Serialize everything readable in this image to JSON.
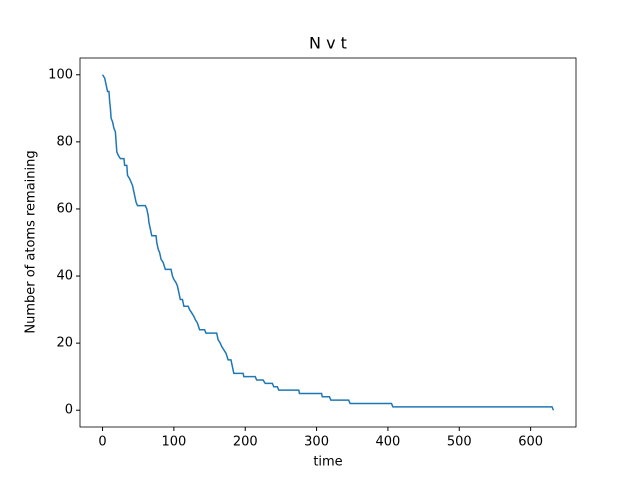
{
  "chart_data": {
    "type": "line",
    "title": "N v t",
    "x_label": "time",
    "y_label": "Number of atoms remaining",
    "x": [
      0,
      3,
      5,
      7,
      9,
      10,
      11,
      12,
      14,
      16,
      18,
      19,
      20,
      22,
      25,
      30,
      31,
      34,
      35,
      38,
      40,
      42,
      44,
      46,
      47,
      49,
      60,
      62,
      64,
      65,
      67,
      69,
      75,
      76,
      78,
      80,
      82,
      85,
      88,
      96,
      98,
      100,
      103,
      105,
      107,
      109,
      112,
      114,
      120,
      122,
      125,
      128,
      130,
      133,
      136,
      143,
      145,
      160,
      162,
      165,
      167,
      170,
      173,
      176,
      180,
      182,
      184,
      197,
      198,
      214,
      216,
      225,
      228,
      238,
      240,
      245,
      247,
      275,
      276,
      307,
      308,
      318,
      320,
      345,
      347,
      405,
      407,
      630,
      632
    ],
    "series": [
      {
        "name": "N",
        "color": "#1f77b4",
        "values": [
          100,
          99,
          97,
          95,
          95,
          92,
          90,
          87,
          86,
          84,
          83,
          80,
          77,
          76,
          75,
          75,
          73,
          73,
          70,
          69,
          68,
          67,
          65,
          63,
          62,
          61,
          61,
          60,
          58,
          56,
          54,
          52,
          52,
          50,
          48,
          47,
          45,
          44,
          42,
          42,
          40,
          39,
          38,
          37,
          35,
          33,
          33,
          31,
          31,
          30,
          29,
          28,
          27,
          26,
          24,
          24,
          23,
          23,
          21,
          20,
          19,
          18,
          17,
          15,
          15,
          13,
          11,
          11,
          10,
          10,
          9,
          9,
          8,
          8,
          7,
          7,
          6,
          6,
          5,
          5,
          4,
          4,
          3,
          3,
          2,
          2,
          1,
          1,
          0
        ]
      }
    ],
    "xlim": [
      -31.6,
      663.6
    ],
    "ylim": [
      -5,
      105
    ],
    "xticks": [
      0,
      100,
      200,
      300,
      400,
      500,
      600
    ],
    "yticks": [
      0,
      20,
      40,
      60,
      80,
      100
    ]
  }
}
